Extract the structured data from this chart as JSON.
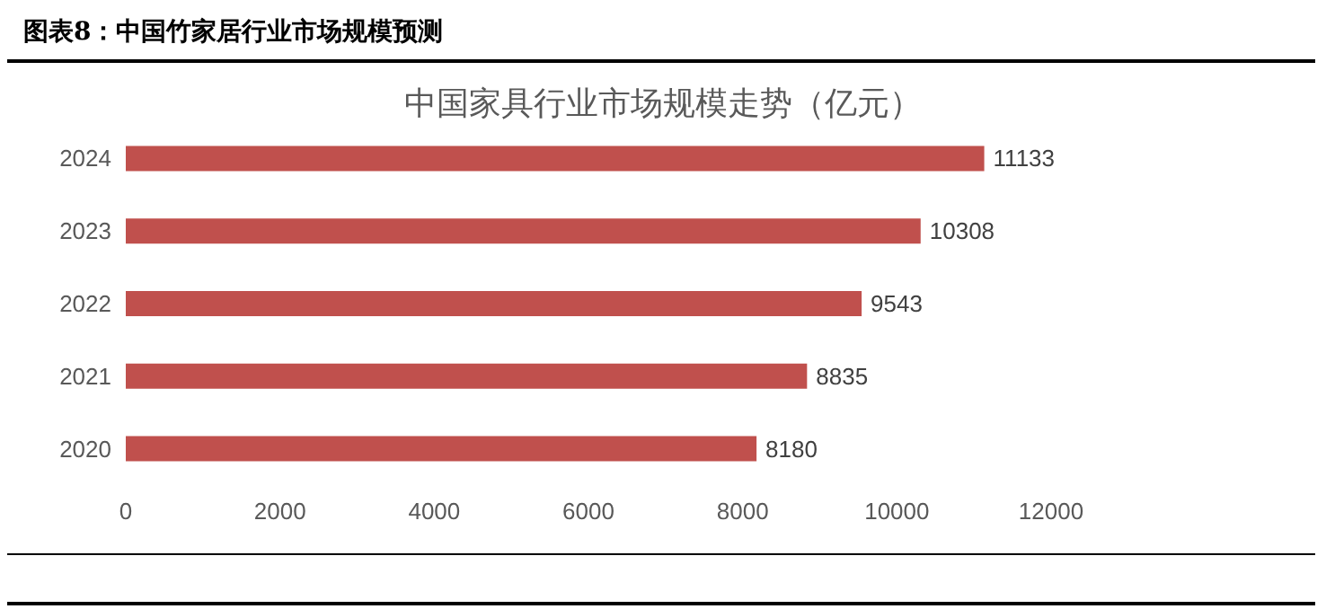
{
  "chart_data": {
    "type": "bar",
    "title": "图表8：中国竹家居行业市场规模预测",
    "subtitle": "中国家具行业市场规模走势（亿元）",
    "orientation": "horizontal",
    "categories": [
      "2024",
      "2023",
      "2022",
      "2021",
      "2020"
    ],
    "values": [
      11133,
      10308,
      9543,
      8835,
      8180
    ],
    "color": "#c0504d",
    "data_labels": true,
    "grid": false,
    "xlim": [
      0,
      12000
    ],
    "xticks": [
      0,
      2000,
      4000,
      6000,
      8000,
      10000,
      12000
    ]
  }
}
